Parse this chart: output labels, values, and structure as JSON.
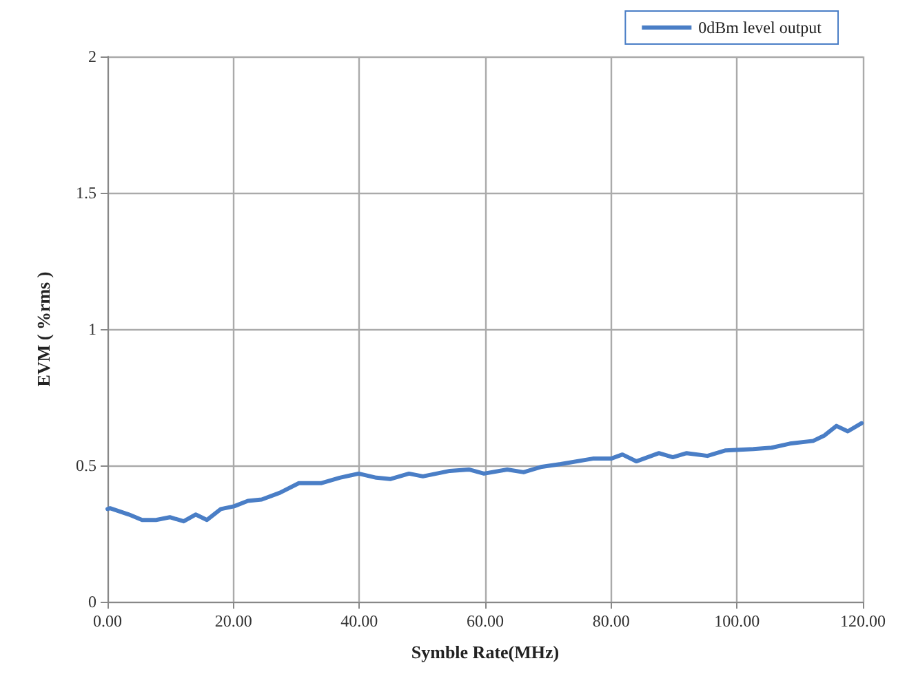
{
  "chart_data": {
    "type": "line",
    "xlabel": "Symble Rate(MHz)",
    "ylabel": "EVM ( %rms )",
    "x": [
      0,
      0.4,
      3.4,
      5.5,
      7.7,
      9.9,
      12.1,
      14,
      15.8,
      18,
      20.1,
      22.3,
      24.5,
      27.4,
      30.4,
      34,
      36.9,
      39.9,
      42.7,
      44.9,
      47.9,
      50.1,
      54.4,
      57.4,
      59.8,
      63.5,
      66.1,
      69,
      72,
      77.1,
      80,
      81.8,
      84,
      87.6,
      89.8,
      92,
      95.3,
      98.2,
      102.6,
      105.5,
      108.4,
      112.1,
      113.9,
      115.8,
      117.6,
      119.8
    ],
    "series": [
      {
        "name": "0dBm level output",
        "color": "#4a7ec6",
        "values": [
          0.34,
          0.343,
          0.32,
          0.3,
          0.3,
          0.31,
          0.295,
          0.32,
          0.3,
          0.34,
          0.35,
          0.37,
          0.375,
          0.4,
          0.435,
          0.435,
          0.455,
          0.47,
          0.455,
          0.45,
          0.47,
          0.46,
          0.48,
          0.485,
          0.47,
          0.485,
          0.475,
          0.495,
          0.505,
          0.525,
          0.525,
          0.54,
          0.515,
          0.545,
          0.53,
          0.545,
          0.535,
          0.555,
          0.56,
          0.565,
          0.58,
          0.59,
          0.61,
          0.645,
          0.625,
          0.655
        ]
      }
    ],
    "xlim": [
      0,
      120
    ],
    "xticks": [
      {
        "value": 0,
        "label": "0.00"
      },
      {
        "value": 20,
        "label": "20.00"
      },
      {
        "value": 40,
        "label": "40.00"
      },
      {
        "value": 60,
        "label": "60.00"
      },
      {
        "value": 80,
        "label": "80.00"
      },
      {
        "value": 100,
        "label": "100.00"
      },
      {
        "value": 120,
        "label": "120.00"
      }
    ],
    "ylim": [
      0,
      2
    ],
    "yticks": [
      0,
      0.5,
      1,
      1.5,
      2
    ],
    "grid": true,
    "legend": "top right",
    "marker": "none",
    "line_style": "solid"
  }
}
